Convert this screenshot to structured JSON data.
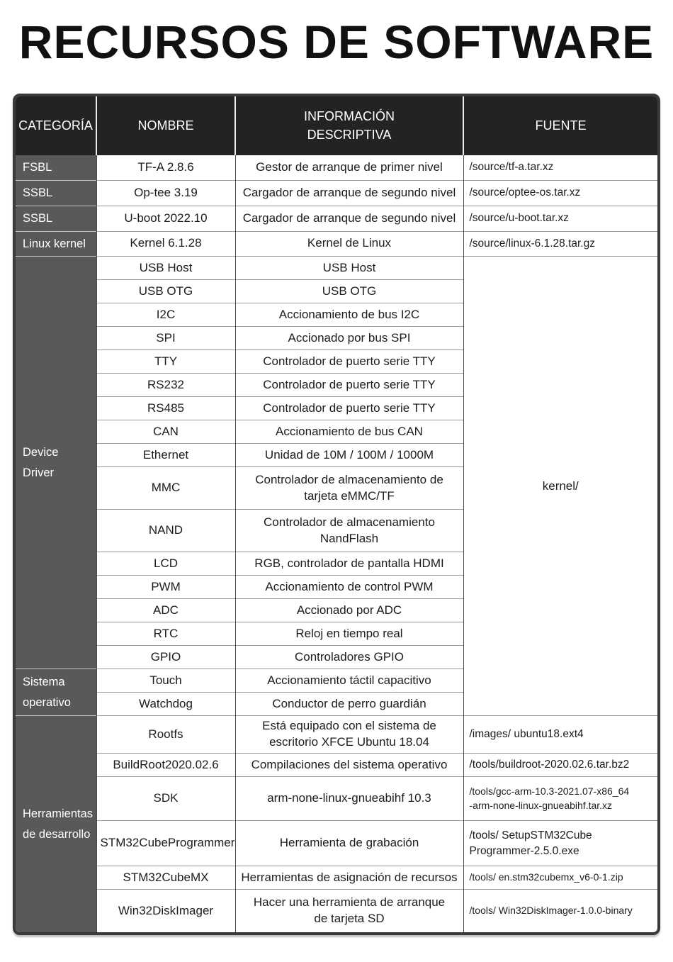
{
  "page": {
    "title": "RECURSOS DE SOFTWARE"
  },
  "colors": {
    "header_bg": "#232325",
    "category_bg": "#59595b",
    "outer_border": "#3a3a3c",
    "row_divider": "#9a9a9a",
    "column_divider": "#4a4a4c",
    "text": "#1c1c1c",
    "header_text": "#ffffff"
  },
  "table": {
    "headers": {
      "categoria": "CATEGORÍA",
      "nombre": "NOMBRE",
      "info": "INFORMACIÓN\nDESCRIPTIVA",
      "fuente": "FUENTE"
    },
    "rows": [
      {
        "cat": "FSBL",
        "name": "TF-A 2.8.6",
        "info": "Gestor de arranque de primer nivel",
        "src": "/source/tf-a.tar.xz"
      },
      {
        "cat": "SSBL",
        "name": "Op-tee 3.19",
        "info": "Cargador de arranque de segundo nivel",
        "src": "/source/optee-os.tar.xz"
      },
      {
        "cat": "SSBL",
        "name": "U-boot 2022.10",
        "info": "Cargador de arranque de segundo nivel",
        "src": "/source/u-boot.tar.xz"
      },
      {
        "cat": "Linux kernel",
        "name": "Kernel 6.1.28",
        "info": "Kernel de Linux",
        "src": "/source/linux-6.1.28.tar.gz"
      },
      {
        "cat": "Device\nDriver",
        "name": "USB Host",
        "info": "USB Host",
        "src": "kernel/"
      },
      {
        "name": "USB OTG",
        "info": "USB OTG"
      },
      {
        "name": "I2C",
        "info": "Accionamiento de bus I2C"
      },
      {
        "name": "SPI",
        "info": "Accionado por bus SPI"
      },
      {
        "name": "TTY",
        "info": "Controlador de puerto serie TTY"
      },
      {
        "name": "RS232",
        "info": "Controlador de puerto serie TTY"
      },
      {
        "name": "RS485",
        "info": "Controlador de puerto serie TTY"
      },
      {
        "name": "CAN",
        "info": "Accionamiento de bus CAN"
      },
      {
        "name": "Ethernet",
        "info": "Unidad de 10M / 100M / 1000M"
      },
      {
        "name": "MMC",
        "info": "Controlador de almacenamiento de\ntarjeta eMMC/TF"
      },
      {
        "name": "NAND",
        "info": "Controlador de almacenamiento\nNandFlash"
      },
      {
        "name": "LCD",
        "info": "RGB, controlador de pantalla HDMI"
      },
      {
        "name": "PWM",
        "info": "Accionamiento de control PWM"
      },
      {
        "name": "ADC",
        "info": "Accionado por ADC"
      },
      {
        "name": "RTC",
        "info": "Reloj en tiempo real"
      },
      {
        "name": "GPIO",
        "info": "Controladores GPIO"
      },
      {
        "cat": "Sistema\noperativo",
        "name": "Touch",
        "info": "Accionamiento táctil capacitivo"
      },
      {
        "name": "Watchdog",
        "info": "Conductor de perro guardián"
      },
      {
        "cat": "Herramientas\nde desarrollo",
        "name": "Rootfs",
        "info": "Está equipado con el sistema de\nescritorio XFCE Ubuntu 18.04",
        "src": "/images/ ubuntu18.ext4"
      },
      {
        "name": "BuildRoot2020.02.6",
        "info": "Compilaciones del sistema operativo",
        "src": "/tools/buildroot-2020.02.6.tar.bz2"
      },
      {
        "name": "SDK",
        "info": "arm-none-linux-gnueabihf 10.3",
        "src": "/tools/gcc-arm-10.3-2021.07-x86_64\n-arm-none-linux-gnueabihf.tar.xz"
      },
      {
        "name": "STM32CubeProgrammer",
        "info": "Herramienta de grabación",
        "src": "/tools/ SetupSTM32Cube\nProgrammer-2.5.0.exe"
      },
      {
        "name": "STM32CubeMX",
        "info": "Herramientas de asignación de recursos",
        "src": "/tools/ en.stm32cubemx_v6-0-1.zip"
      },
      {
        "name": "Win32DiskImager",
        "info": "Hacer una herramienta de arranque\nde tarjeta SD",
        "src": "/tools/ Win32DiskImager-1.0.0-binary"
      }
    ]
  }
}
